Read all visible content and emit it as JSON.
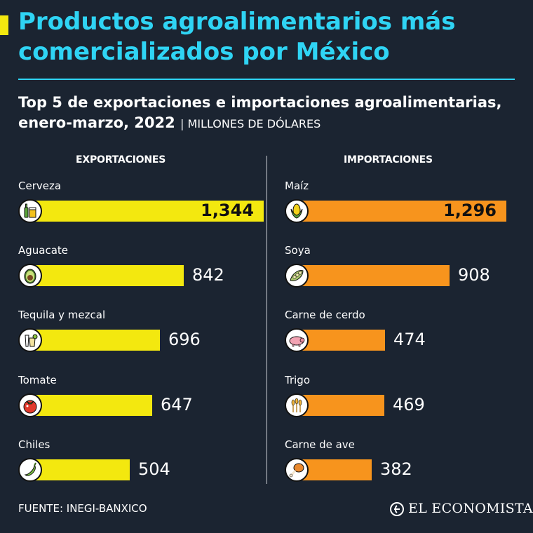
{
  "header": {
    "title": "Productos agroalimentarios más comercializados por México",
    "subtitle": "Top 5 de exportaciones e importaciones agroalimentarias, enero-marzo, 2022",
    "units": "| MILLONES DE DÓLARES"
  },
  "colors": {
    "accent_yellow": "#f3e80f",
    "title_cyan": "#2fd4f4",
    "export_bar": "#f3e80f",
    "import_bar": "#f7941d",
    "background": "#1b2431"
  },
  "chart_data": [
    {
      "type": "bar",
      "orientation": "horizontal",
      "title": "EXPORTACIONES",
      "categories": [
        "Cerveza",
        "Aguacate",
        "Tequila y mezcal",
        "Tomate",
        "Chiles"
      ],
      "values": [
        1344,
        842,
        696,
        647,
        504
      ],
      "value_labels": [
        "1,344",
        "842",
        "696",
        "647",
        "504"
      ],
      "icons": [
        "beer-icon",
        "avocado-icon",
        "tequila-icon",
        "tomato-icon",
        "chile-icon"
      ],
      "color": "#f3e80f"
    },
    {
      "type": "bar",
      "orientation": "horizontal",
      "title": "IMPORTACIONES",
      "categories": [
        "Maíz",
        "Soya",
        "Carne de cerdo",
        "Trigo",
        "Carne de ave"
      ],
      "values": [
        1296,
        908,
        474,
        469,
        382
      ],
      "value_labels": [
        "1,296",
        "908",
        "474",
        "469",
        "382"
      ],
      "icons": [
        "corn-icon",
        "soy-icon",
        "pig-icon",
        "wheat-icon",
        "chicken-leg-icon"
      ],
      "color": "#f7941d"
    }
  ],
  "footer": {
    "source": "FUENTE: INEGI-BANXICO",
    "brand": "EL ECONOMISTA"
  }
}
